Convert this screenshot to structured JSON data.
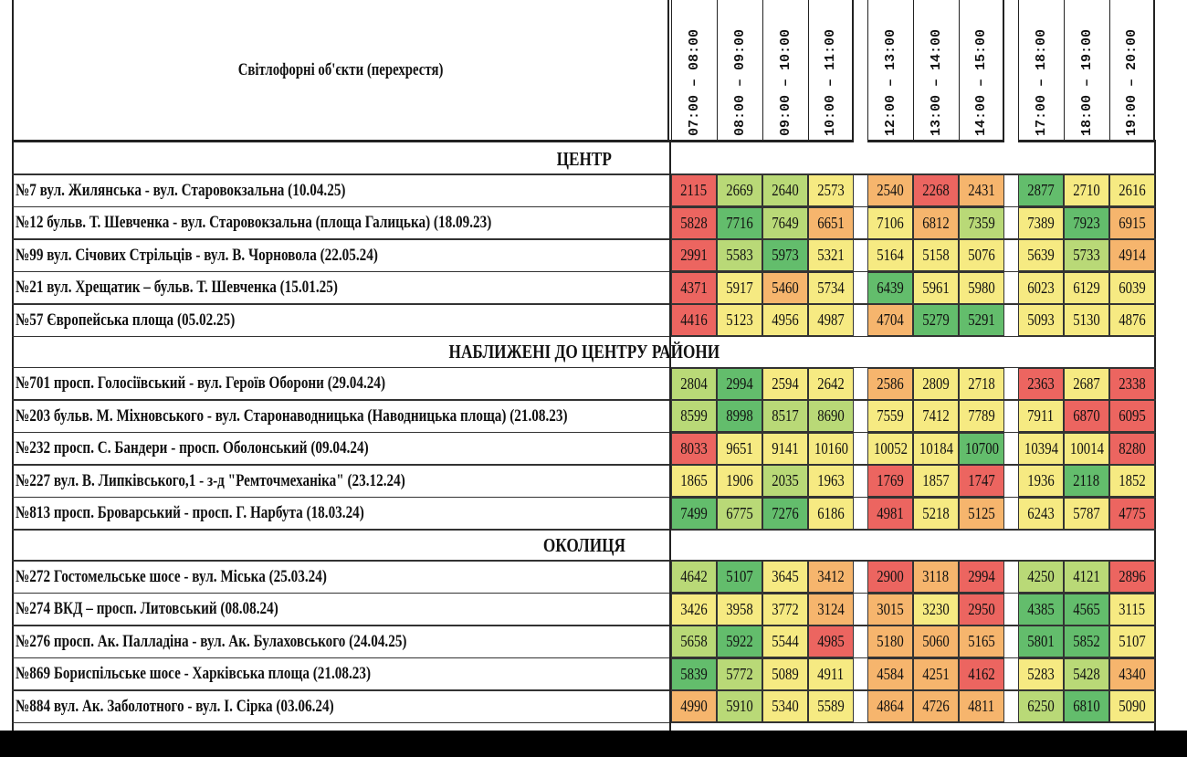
{
  "header": {
    "title": "Світлофорні об'єкти (перехрестя)",
    "groups": [
      [
        "07:00 – 08:00",
        "08:00 – 09:00",
        "09:00 – 10:00",
        "10:00 – 11:00"
      ],
      [
        "12:00 – 13:00",
        "13:00 – 14:00",
        "14:00 – 15:00"
      ],
      [
        "17:00 – 18:00",
        "18:00 – 19:00",
        "19:00 – 20:00"
      ]
    ]
  },
  "colors": {
    "red": "#ec6560",
    "orange": "#f6b56d",
    "yellow": "#f6ea82",
    "lightgreen": "#b9d977",
    "green": "#63bd6c"
  },
  "sections": [
    {
      "title": "ЦЕНТР",
      "rows": [
        {
          "name": "№7 вул. Жилянська - вул. Старовокзальна (10.04.25)",
          "values": [
            "2115",
            "2669",
            "2640",
            "2573",
            "2540",
            "2268",
            "2431",
            "2877",
            "2710",
            "2616"
          ],
          "colors": [
            "red",
            "lightgreen",
            "lightgreen",
            "yellow",
            "orange",
            "red",
            "orange",
            "green",
            "yellow",
            "yellow"
          ]
        },
        {
          "name": "№12 бульв. Т. Шевченка - вул. Старовокзальна (площа Галицька) (18.09.23)",
          "values": [
            "5828",
            "7716",
            "7649",
            "6651",
            "7106",
            "6812",
            "7359",
            "7389",
            "7923",
            "6915"
          ],
          "colors": [
            "red",
            "green",
            "lightgreen",
            "orange",
            "yellow",
            "orange",
            "lightgreen",
            "yellow",
            "green",
            "orange"
          ]
        },
        {
          "name": "№99 вул. Січових Стрільців - вул. В. Чорновола (22.05.24)",
          "values": [
            "2991",
            "5583",
            "5973",
            "5321",
            "5164",
            "5158",
            "5076",
            "5639",
            "5733",
            "4914"
          ],
          "colors": [
            "red",
            "lightgreen",
            "green",
            "yellow",
            "yellow",
            "yellow",
            "yellow",
            "yellow",
            "lightgreen",
            "orange"
          ]
        },
        {
          "name": "№21 вул. Хрещатик – бульв. Т. Шевченка  (15.01.25)",
          "values": [
            "4371",
            "5917",
            "5460",
            "5734",
            "6439",
            "5961",
            "5980",
            "6023",
            "6129",
            "6039"
          ],
          "colors": [
            "red",
            "yellow",
            "orange",
            "yellow",
            "green",
            "yellow",
            "yellow",
            "yellow",
            "yellow",
            "yellow"
          ]
        },
        {
          "name": "№57 Європейська площа (05.02.25)",
          "values": [
            "4416",
            "5123",
            "4956",
            "4987",
            "4704",
            "5279",
            "5291",
            "5093",
            "5130",
            "4876"
          ],
          "colors": [
            "red",
            "yellow",
            "yellow",
            "yellow",
            "orange",
            "green",
            "green",
            "yellow",
            "yellow",
            "yellow"
          ]
        }
      ]
    },
    {
      "title": "НАБЛИЖЕНІ ДО ЦЕНТРУ РАЙОНИ",
      "rows": [
        {
          "name": "№701 просп. Голосіївський - вул. Героїв Оборони (29.04.24)",
          "values": [
            "2804",
            "2994",
            "2594",
            "2642",
            "2586",
            "2809",
            "2718",
            "2363",
            "2687",
            "2338"
          ],
          "colors": [
            "lightgreen",
            "green",
            "yellow",
            "yellow",
            "orange",
            "yellow",
            "yellow",
            "red",
            "yellow",
            "red"
          ]
        },
        {
          "name": "№203 бульв. М. Міхновського - вул. Старонаводницька (Наводницька площа) (21.08.23)",
          "values": [
            "8599",
            "8998",
            "8517",
            "8690",
            "7559",
            "7412",
            "7789",
            "7911",
            "6870",
            "6095"
          ],
          "colors": [
            "lightgreen",
            "green",
            "lightgreen",
            "lightgreen",
            "yellow",
            "yellow",
            "yellow",
            "yellow",
            "red",
            "red"
          ]
        },
        {
          "name": "№232 просп. С. Бандери - просп. Оболонський (09.04.24)",
          "values": [
            "8033",
            "9651",
            "9141",
            "10160",
            "10052",
            "10184",
            "10700",
            "10394",
            "10014",
            "8280"
          ],
          "colors": [
            "red",
            "yellow",
            "yellow",
            "yellow",
            "yellow",
            "yellow",
            "green",
            "yellow",
            "yellow",
            "red"
          ]
        },
        {
          "name": "№227 вул. В. Липківського,1 - з-д \"Ремточмеханіка\" (23.12.24)",
          "values": [
            "1865",
            "1906",
            "2035",
            "1963",
            "1769",
            "1857",
            "1747",
            "1936",
            "2118",
            "1852"
          ],
          "colors": [
            "yellow",
            "yellow",
            "lightgreen",
            "yellow",
            "red",
            "yellow",
            "red",
            "yellow",
            "green",
            "yellow"
          ]
        },
        {
          "name": "№813 просп. Броварський - просп. Г. Нарбута (18.03.24)",
          "values": [
            "7499",
            "6775",
            "7276",
            "6186",
            "4981",
            "5218",
            "5125",
            "6243",
            "5787",
            "4775"
          ],
          "colors": [
            "green",
            "lightgreen",
            "green",
            "yellow",
            "red",
            "yellow",
            "orange",
            "yellow",
            "yellow",
            "red"
          ]
        }
      ]
    },
    {
      "title": "ОКОЛИЦЯ",
      "rows": [
        {
          "name": "№272 Гостомельське шосе - вул. Міська (25.03.24)",
          "values": [
            "4642",
            "5107",
            "3645",
            "3412",
            "2900",
            "3118",
            "2994",
            "4250",
            "4121",
            "2896"
          ],
          "colors": [
            "lightgreen",
            "green",
            "yellow",
            "orange",
            "red",
            "orange",
            "red",
            "lightgreen",
            "lightgreen",
            "red"
          ]
        },
        {
          "name": "№274 ВКД – просп. Литовський (08.08.24)",
          "values": [
            "3426",
            "3958",
            "3772",
            "3124",
            "3015",
            "3230",
            "2950",
            "4385",
            "4565",
            "3115"
          ],
          "colors": [
            "yellow",
            "yellow",
            "yellow",
            "orange",
            "orange",
            "yellow",
            "red",
            "green",
            "green",
            "yellow"
          ]
        },
        {
          "name": "№276 просп. Ак. Палладіна - вул. Ак. Булаховського (24.04.25)",
          "values": [
            "5658",
            "5922",
            "5544",
            "4985",
            "5180",
            "5060",
            "5165",
            "5801",
            "5852",
            "5107"
          ],
          "colors": [
            "lightgreen",
            "green",
            "yellow",
            "red",
            "orange",
            "orange",
            "orange",
            "green",
            "green",
            "yellow"
          ]
        },
        {
          "name": "№869 Бориспільське шосе - Харківська площа (21.08.23)",
          "values": [
            "5839",
            "5772",
            "5089",
            "4911",
            "4584",
            "4251",
            "4162",
            "5283",
            "5428",
            "4340"
          ],
          "colors": [
            "green",
            "lightgreen",
            "yellow",
            "yellow",
            "orange",
            "orange",
            "red",
            "yellow",
            "lightgreen",
            "orange"
          ]
        },
        {
          "name": "№884 вул. Ак. Заболотного - вул. І. Сірка (03.06.24)",
          "values": [
            "4990",
            "5910",
            "5340",
            "5589",
            "4864",
            "4726",
            "4811",
            "6250",
            "6810",
            "5090"
          ],
          "colors": [
            "orange",
            "lightgreen",
            "yellow",
            "yellow",
            "orange",
            "orange",
            "orange",
            "lightgreen",
            "green",
            "yellow"
          ]
        }
      ]
    }
  ]
}
